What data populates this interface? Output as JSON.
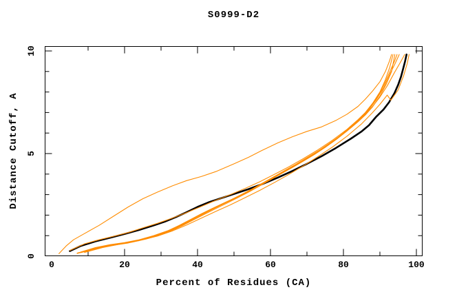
{
  "chart_data": {
    "type": "line",
    "title": "S0999-D2",
    "xlabel": "Percent of Residues (CA)",
    "ylabel": "Distance Cutoff, A",
    "xlim": [
      -2,
      102
    ],
    "ylim": [
      0,
      10.25
    ],
    "x_ticks_major": [
      0,
      20,
      40,
      60,
      80,
      100
    ],
    "x_ticks_minor": [
      10,
      30,
      50,
      70,
      90
    ],
    "y_ticks_major": [
      0,
      5,
      10
    ],
    "y_ticks_minor": [
      1,
      2,
      3,
      4,
      6,
      7,
      8,
      9
    ],
    "grid": false,
    "legend": "none",
    "colors": {
      "model_lines": "#ff8c00",
      "reference_line": "#000000",
      "frame": "#000000",
      "background": "#ffffff"
    },
    "series": [
      {
        "name": "reference-black",
        "color": "#000000",
        "width": 2.6,
        "points": [
          [
            5,
            0.25
          ],
          [
            8,
            0.5
          ],
          [
            12,
            0.72
          ],
          [
            16,
            0.9
          ],
          [
            20,
            1.08
          ],
          [
            24,
            1.28
          ],
          [
            28,
            1.5
          ],
          [
            31,
            1.68
          ],
          [
            34,
            1.9
          ],
          [
            37,
            2.14
          ],
          [
            40,
            2.4
          ],
          [
            43,
            2.62
          ],
          [
            46,
            2.8
          ],
          [
            50,
            3.03
          ],
          [
            54,
            3.27
          ],
          [
            58,
            3.53
          ],
          [
            62,
            3.83
          ],
          [
            66,
            4.15
          ],
          [
            70,
            4.5
          ],
          [
            74,
            4.87
          ],
          [
            78,
            5.28
          ],
          [
            82,
            5.72
          ],
          [
            85,
            6.08
          ],
          [
            87,
            6.38
          ],
          [
            89,
            6.8
          ],
          [
            91,
            7.15
          ],
          [
            92.5,
            7.5
          ],
          [
            94,
            7.95
          ],
          [
            95,
            8.35
          ],
          [
            95.8,
            8.75
          ],
          [
            96.4,
            9.15
          ],
          [
            96.9,
            9.5
          ],
          [
            97.3,
            9.83
          ]
        ]
      },
      {
        "name": "model-1",
        "color": "#ff8c00",
        "width": 1.1,
        "points": [
          [
            2,
            0.12
          ],
          [
            4,
            0.5
          ],
          [
            6,
            0.8
          ],
          [
            9,
            1.1
          ],
          [
            13,
            1.5
          ],
          [
            17,
            1.95
          ],
          [
            21,
            2.4
          ],
          [
            25,
            2.8
          ],
          [
            29,
            3.12
          ],
          [
            33,
            3.42
          ],
          [
            37,
            3.68
          ],
          [
            41,
            3.88
          ],
          [
            45,
            4.12
          ],
          [
            50,
            4.5
          ],
          [
            54,
            4.82
          ],
          [
            58,
            5.18
          ],
          [
            62,
            5.52
          ],
          [
            66,
            5.82
          ],
          [
            70,
            6.08
          ],
          [
            74,
            6.3
          ],
          [
            78,
            6.62
          ],
          [
            81,
            6.92
          ],
          [
            84,
            7.3
          ],
          [
            86,
            7.65
          ],
          [
            88,
            8.05
          ],
          [
            90,
            8.5
          ],
          [
            91.5,
            9.0
          ],
          [
            92.6,
            9.5
          ],
          [
            93.2,
            9.83
          ]
        ]
      },
      {
        "name": "model-2",
        "color": "#ff8c00",
        "width": 1.1,
        "points": [
          [
            5,
            0.28
          ],
          [
            9,
            0.6
          ],
          [
            13,
            0.8
          ],
          [
            17,
            0.97
          ],
          [
            21,
            1.15
          ],
          [
            25,
            1.38
          ],
          [
            29,
            1.6
          ],
          [
            33,
            1.85
          ],
          [
            37,
            2.12
          ],
          [
            41,
            2.42
          ],
          [
            45,
            2.72
          ],
          [
            49,
            3.0
          ],
          [
            53,
            3.3
          ],
          [
            57,
            3.62
          ],
          [
            61,
            3.98
          ],
          [
            65,
            4.35
          ],
          [
            69,
            4.75
          ],
          [
            73,
            5.18
          ],
          [
            77,
            5.65
          ],
          [
            81,
            6.18
          ],
          [
            84,
            6.65
          ],
          [
            86,
            7.0
          ],
          [
            88,
            7.45
          ],
          [
            90,
            8.0
          ],
          [
            91.5,
            8.6
          ],
          [
            92.7,
            9.2
          ],
          [
            93.6,
            9.83
          ]
        ]
      },
      {
        "name": "model-3",
        "color": "#ff8c00",
        "width": 1.1,
        "points": [
          [
            7,
            0.15
          ],
          [
            11,
            0.35
          ],
          [
            15,
            0.5
          ],
          [
            19,
            0.62
          ],
          [
            23,
            0.75
          ],
          [
            27,
            0.92
          ],
          [
            31,
            1.15
          ],
          [
            34,
            1.38
          ],
          [
            37,
            1.65
          ],
          [
            40,
            1.95
          ],
          [
            43,
            2.22
          ],
          [
            46,
            2.48
          ],
          [
            49,
            2.73
          ],
          [
            52,
            3.0
          ],
          [
            55,
            3.28
          ],
          [
            58,
            3.58
          ],
          [
            61,
            3.88
          ],
          [
            64,
            4.18
          ],
          [
            67,
            4.48
          ],
          [
            70,
            4.8
          ],
          [
            73,
            5.12
          ],
          [
            76,
            5.48
          ],
          [
            79,
            5.85
          ],
          [
            82,
            6.28
          ],
          [
            84,
            6.6
          ],
          [
            86,
            6.95
          ],
          [
            88,
            7.4
          ],
          [
            90,
            7.95
          ],
          [
            91.5,
            8.5
          ],
          [
            93,
            9.1
          ],
          [
            94,
            9.5
          ],
          [
            94.7,
            9.83
          ]
        ]
      },
      {
        "name": "model-4",
        "color": "#ff8c00",
        "width": 1.1,
        "points": [
          [
            8,
            0.2
          ],
          [
            12,
            0.42
          ],
          [
            16,
            0.56
          ],
          [
            20,
            0.66
          ],
          [
            24,
            0.8
          ],
          [
            28,
            1.0
          ],
          [
            32,
            1.25
          ],
          [
            35,
            1.5
          ],
          [
            38,
            1.78
          ],
          [
            41,
            2.06
          ],
          [
            44,
            2.32
          ],
          [
            47,
            2.57
          ],
          [
            50,
            2.82
          ],
          [
            53,
            3.08
          ],
          [
            56,
            3.36
          ],
          [
            59,
            3.66
          ],
          [
            62,
            3.96
          ],
          [
            65,
            4.26
          ],
          [
            68,
            4.56
          ],
          [
            71,
            4.88
          ],
          [
            74,
            5.22
          ],
          [
            77,
            5.58
          ],
          [
            80,
            6.0
          ],
          [
            83,
            6.45
          ],
          [
            85,
            6.78
          ],
          [
            87,
            7.15
          ],
          [
            89,
            7.62
          ],
          [
            91,
            8.2
          ],
          [
            92.8,
            8.9
          ],
          [
            94.2,
            9.4
          ],
          [
            95.3,
            9.83
          ]
        ]
      },
      {
        "name": "model-5",
        "color": "#ff8c00",
        "width": 1.1,
        "points": [
          [
            8,
            0.17
          ],
          [
            13,
            0.4
          ],
          [
            18,
            0.56
          ],
          [
            22,
            0.68
          ],
          [
            26,
            0.84
          ],
          [
            30,
            1.05
          ],
          [
            33,
            1.26
          ],
          [
            36,
            1.5
          ],
          [
            39,
            1.78
          ],
          [
            42,
            2.05
          ],
          [
            45,
            2.32
          ],
          [
            48,
            2.58
          ],
          [
            51,
            2.85
          ],
          [
            54,
            3.12
          ],
          [
            57,
            3.42
          ],
          [
            60,
            3.72
          ],
          [
            63,
            4.02
          ],
          [
            66,
            4.32
          ],
          [
            69,
            4.63
          ],
          [
            72,
            4.95
          ],
          [
            75,
            5.3
          ],
          [
            78,
            5.68
          ],
          [
            81,
            6.1
          ],
          [
            84,
            6.58
          ],
          [
            86,
            6.92
          ],
          [
            88,
            7.3
          ],
          [
            90,
            7.75
          ],
          [
            92,
            8.3
          ],
          [
            94,
            8.95
          ],
          [
            95.8,
            9.5
          ],
          [
            96.8,
            9.83
          ]
        ]
      },
      {
        "name": "model-6",
        "color": "#ff8c00",
        "width": 1.1,
        "points": [
          [
            9,
            0.18
          ],
          [
            14,
            0.42
          ],
          [
            19,
            0.6
          ],
          [
            24,
            0.76
          ],
          [
            29,
            0.98
          ],
          [
            33,
            1.22
          ],
          [
            37,
            1.52
          ],
          [
            41,
            1.85
          ],
          [
            45,
            2.18
          ],
          [
            49,
            2.5
          ],
          [
            53,
            2.85
          ],
          [
            57,
            3.2
          ],
          [
            61,
            3.58
          ],
          [
            65,
            3.98
          ],
          [
            69,
            4.4
          ],
          [
            73,
            4.85
          ],
          [
            77,
            5.32
          ],
          [
            81,
            5.85
          ],
          [
            85,
            6.45
          ],
          [
            88,
            7.0
          ],
          [
            90,
            7.4
          ],
          [
            92,
            7.85
          ],
          [
            93,
            7.6
          ],
          [
            95,
            8.1
          ],
          [
            96.5,
            8.8
          ],
          [
            97.5,
            9.4
          ],
          [
            98,
            9.83
          ]
        ]
      },
      {
        "name": "model-7",
        "color": "#ff8c00",
        "width": 1.1,
        "points": [
          [
            7,
            0.13
          ],
          [
            12,
            0.38
          ],
          [
            17,
            0.54
          ],
          [
            21,
            0.64
          ],
          [
            25,
            0.82
          ],
          [
            29,
            1.02
          ],
          [
            32,
            1.2
          ],
          [
            35,
            1.44
          ],
          [
            38,
            1.72
          ],
          [
            41,
            2.0
          ],
          [
            44,
            2.28
          ],
          [
            47,
            2.54
          ],
          [
            50,
            2.8
          ],
          [
            53,
            3.06
          ],
          [
            56,
            3.34
          ],
          [
            59,
            3.64
          ],
          [
            62,
            3.94
          ],
          [
            65,
            4.24
          ],
          [
            68,
            4.54
          ],
          [
            71,
            4.86
          ],
          [
            74,
            5.2
          ],
          [
            77,
            5.56
          ],
          [
            80,
            5.97
          ],
          [
            82,
            6.25
          ],
          [
            84,
            6.55
          ],
          [
            86,
            6.88
          ],
          [
            88,
            7.28
          ],
          [
            90,
            7.8
          ],
          [
            91.8,
            8.4
          ],
          [
            93.2,
            9.0
          ],
          [
            94.1,
            9.83
          ]
        ]
      }
    ]
  }
}
